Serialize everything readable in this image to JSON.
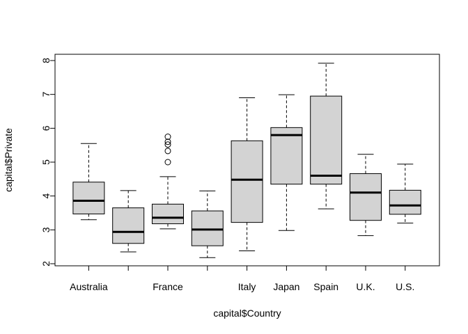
{
  "chart_data": {
    "type": "boxplot",
    "title": "",
    "xlabel": "capital$Country",
    "ylabel": "capital$Private",
    "ylim": [
      2,
      8
    ],
    "yticks": [
      2,
      3,
      4,
      5,
      6,
      7,
      8
    ],
    "grid": false,
    "legend": "none",
    "box_fill": "#d3d3d3",
    "categories": [
      "Australia",
      "",
      "France",
      "",
      "Italy",
      "Japan",
      "Spain",
      "U.K.",
      "U.S."
    ],
    "boxes": [
      {
        "label": "Australia",
        "whisker_low": 3.3,
        "q1": 3.47,
        "median": 3.86,
        "q3": 4.41,
        "whisker_high": 5.55,
        "outliers": []
      },
      {
        "label": "",
        "whisker_low": 2.35,
        "q1": 2.6,
        "median": 2.94,
        "q3": 3.65,
        "whisker_high": 4.16,
        "outliers": []
      },
      {
        "label": "France",
        "whisker_low": 3.03,
        "q1": 3.18,
        "median": 3.36,
        "q3": 3.76,
        "whisker_high": 4.57,
        "outliers": [
          5.0,
          5.33,
          5.52,
          5.6,
          5.75
        ]
      },
      {
        "label": "",
        "whisker_low": 2.18,
        "q1": 2.53,
        "median": 3.01,
        "q3": 3.56,
        "whisker_high": 4.15,
        "outliers": []
      },
      {
        "label": "Italy",
        "whisker_low": 2.38,
        "q1": 3.22,
        "median": 4.48,
        "q3": 5.63,
        "whisker_high": 6.9,
        "outliers": []
      },
      {
        "label": "Japan",
        "whisker_low": 2.98,
        "q1": 4.35,
        "median": 5.8,
        "q3": 6.02,
        "whisker_high": 6.99,
        "outliers": []
      },
      {
        "label": "Spain",
        "whisker_low": 3.62,
        "q1": 4.35,
        "median": 4.6,
        "q3": 6.95,
        "whisker_high": 7.92,
        "outliers": []
      },
      {
        "label": "U.K.",
        "whisker_low": 2.83,
        "q1": 3.28,
        "median": 4.1,
        "q3": 4.66,
        "whisker_high": 5.23,
        "outliers": []
      },
      {
        "label": "U.S.",
        "whisker_low": 3.2,
        "q1": 3.46,
        "median": 3.72,
        "q3": 4.17,
        "whisker_high": 4.94,
        "outliers": []
      }
    ]
  }
}
